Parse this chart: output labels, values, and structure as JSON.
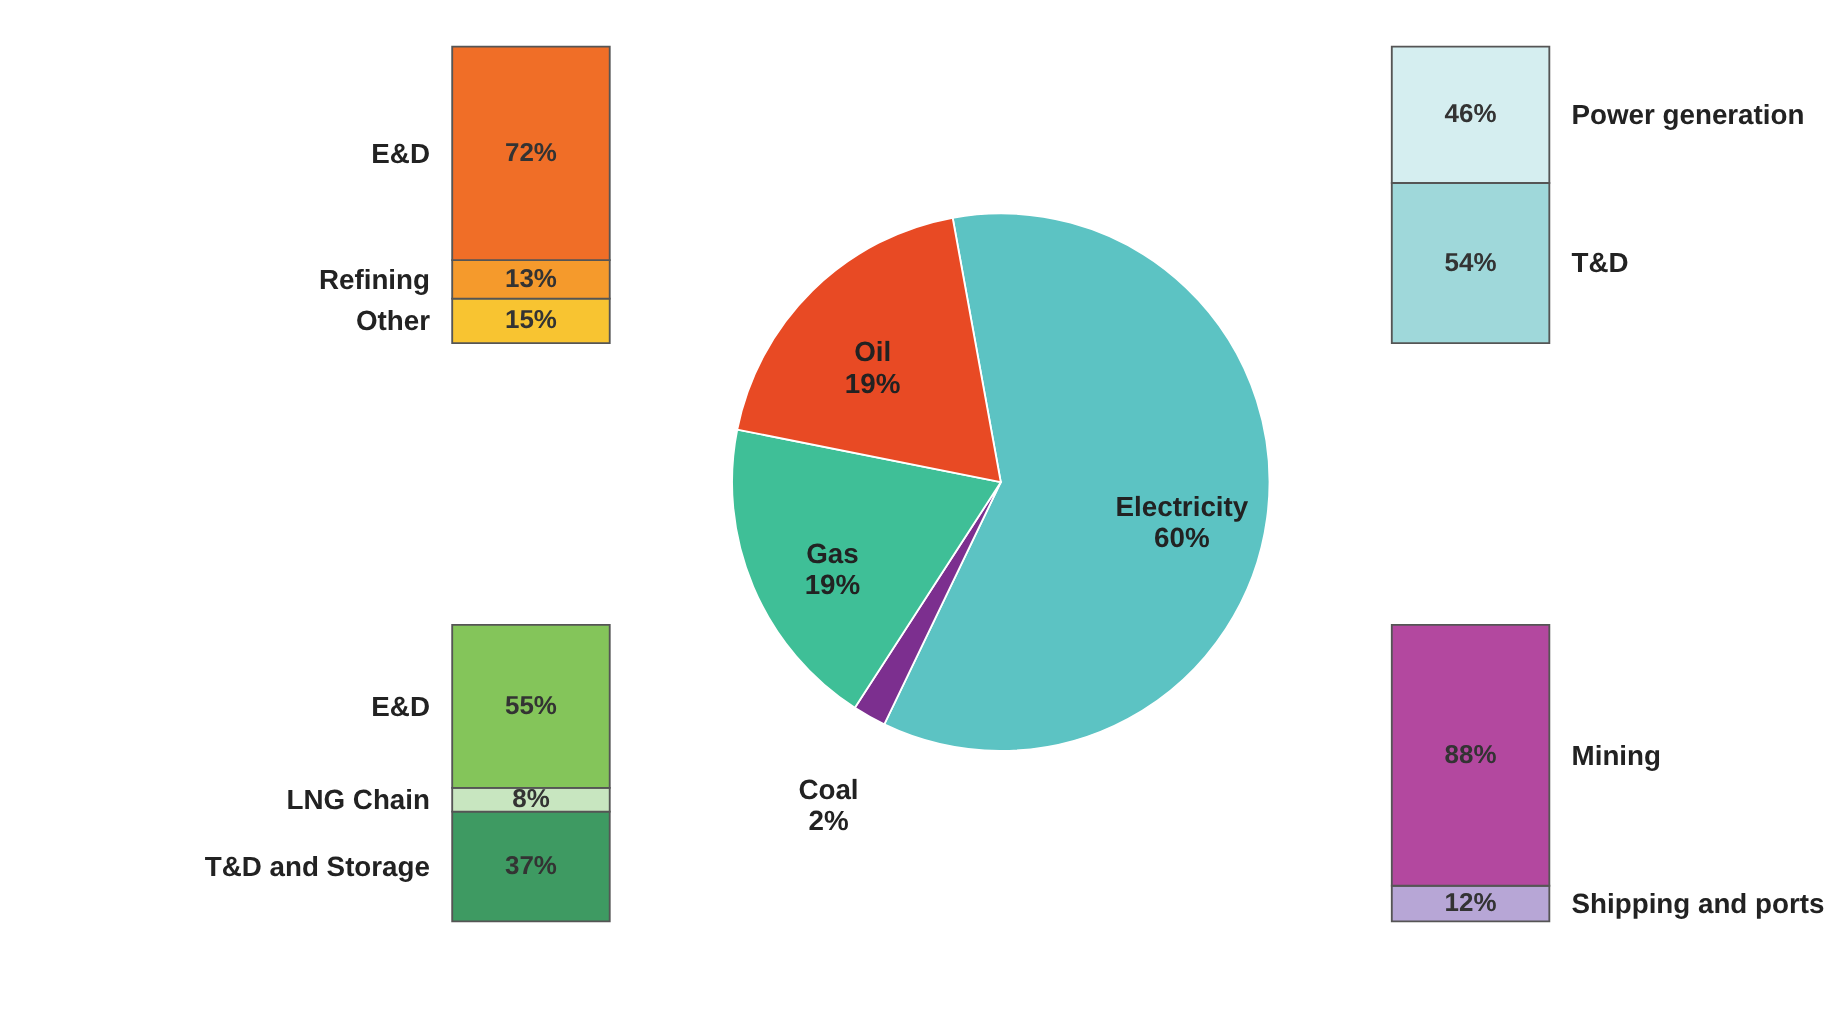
{
  "chart_data": [
    {
      "type": "bar",
      "stacked": true,
      "categories": [
        null
      ],
      "series": [
        {
          "name": "Other",
          "color": "#f8c431",
          "values": [
            15
          ],
          "value_labels": [
            "15%"
          ]
        },
        {
          "name": "Refining",
          "color": "#f59a2c",
          "values": [
            13
          ],
          "value_labels": [
            "13%"
          ]
        },
        {
          "name": "E&D",
          "color": "#f06e27",
          "values": [
            72
          ],
          "value_labels": [
            "72%"
          ]
        }
      ]
    },
    {
      "type": "pie",
      "categories": [
        "Electricity",
        "Coal",
        "Gas",
        "Oil"
      ],
      "values": [
        60,
        2,
        19,
        19
      ],
      "value_labels": [
        "60%",
        "2%",
        "19%",
        "19%"
      ],
      "colors": [
        "#5cc3c3",
        "#7c2f8f",
        "#3fbf97",
        "#e84a24"
      ]
    },
    {
      "type": "bar",
      "stacked": true,
      "categories": [
        null
      ],
      "series": [
        {
          "name": "T&D",
          "color": "#9fd8da",
          "values": [
            54
          ],
          "value_labels": [
            "54%"
          ]
        },
        {
          "name": "Power generation",
          "color": "#d5eef0",
          "values": [
            46
          ],
          "value_labels": [
            "46%"
          ]
        }
      ]
    },
    {
      "type": "bar",
      "stacked": true,
      "categories": [
        null
      ],
      "series": [
        {
          "name": "T&D and Storage",
          "color": "#3e9a62",
          "values": [
            37
          ],
          "value_labels": [
            "37%"
          ]
        },
        {
          "name": "LNG Chain",
          "color": "#c8e6c0",
          "values": [
            8
          ],
          "value_labels": [
            "8%"
          ]
        },
        {
          "name": "E&D",
          "color": "#84c55a",
          "values": [
            55
          ],
          "value_labels": [
            "55%"
          ]
        }
      ]
    },
    {
      "type": "bar",
      "stacked": true,
      "categories": [
        null
      ],
      "series": [
        {
          "name": "Shipping and ports",
          "color": "#b7a6d6",
          "values": [
            12
          ],
          "value_labels": [
            "12%"
          ]
        },
        {
          "name": "Mining",
          "color": "#b3489f",
          "values": [
            88
          ],
          "value_labels": [
            "88%"
          ]
        }
      ]
    }
  ]
}
